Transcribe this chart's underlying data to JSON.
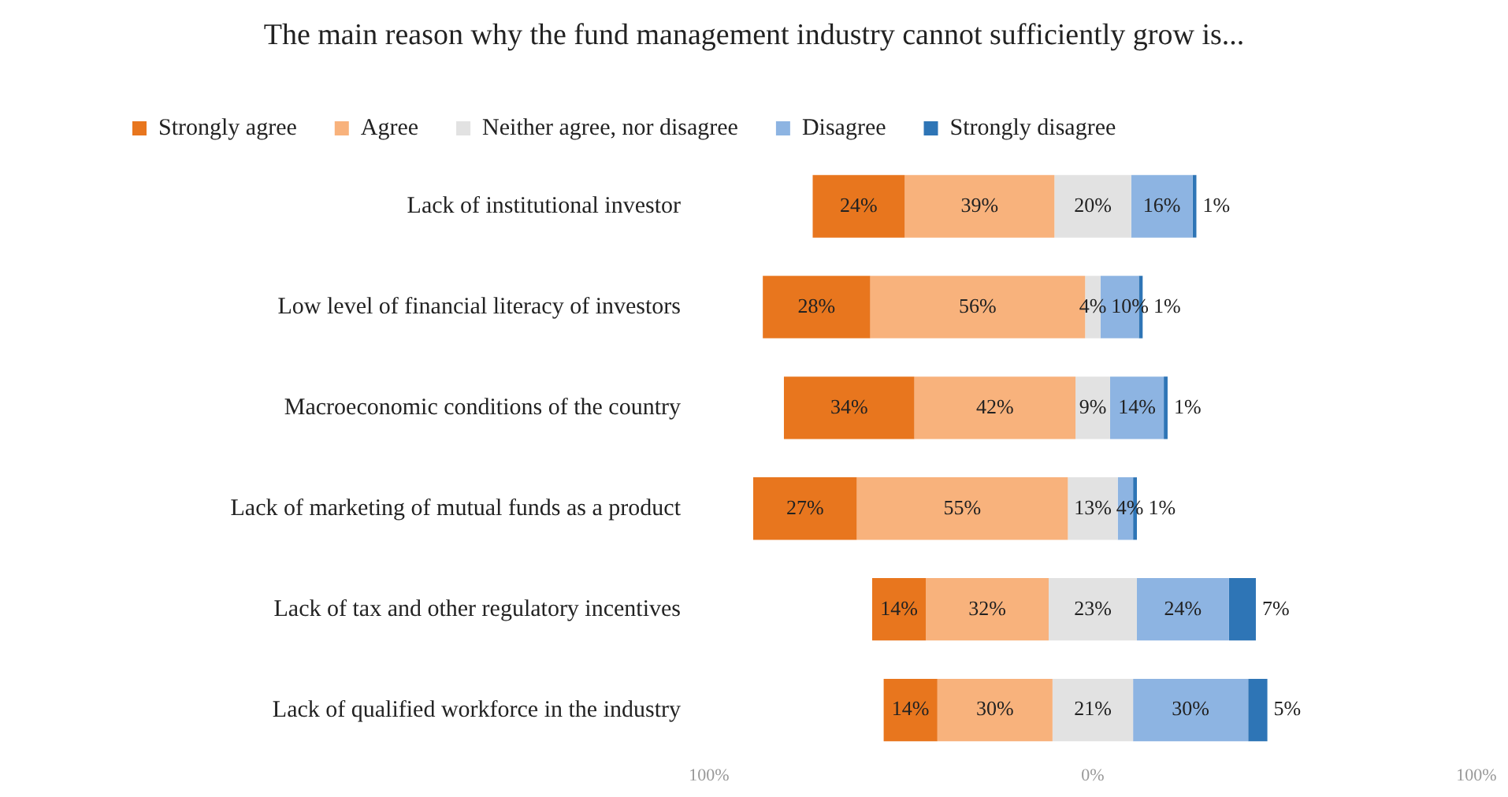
{
  "chart_data": {
    "type": "bar",
    "orientation": "horizontal",
    "title": "The main reason why the fund management industry cannot sufficiently grow is...",
    "categories": [
      "Lack of institutional investor",
      "Low level of financial literacy of investors",
      "Macroeconomic conditions of the country",
      "Lack of marketing of mutual funds as a product",
      "Lack of tax and other regulatory incentives",
      "Lack of qualified workforce in the industry"
    ],
    "series": [
      {
        "name": "Strongly agree",
        "color": "#e8761e",
        "values": [
          24,
          28,
          34,
          27,
          14,
          14
        ],
        "base": [
          -73,
          -86,
          -80.5,
          -88.5,
          -57.5,
          -54.5
        ],
        "value_labels": [
          "24%",
          "28%",
          "34%",
          "27%",
          "14%",
          "14%"
        ]
      },
      {
        "name": "Agree",
        "color": "#f8b27c",
        "values": [
          39,
          56,
          42,
          55,
          32,
          30
        ],
        "base": [
          -49,
          -58,
          -46.5,
          -61.5,
          -43.5,
          -40.5
        ],
        "value_labels": [
          "39%",
          "56%",
          "42%",
          "55%",
          "32%",
          "30%"
        ]
      },
      {
        "name": "Neither agree, nor disagree",
        "color": "#e2e2e2",
        "values": [
          20,
          4,
          9,
          13,
          23,
          21
        ],
        "base": [
          -10,
          -2,
          -4.5,
          -6.5,
          -11.5,
          -10.5
        ],
        "value_labels": [
          "20%",
          "4%",
          "9%",
          "13%",
          "23%",
          "21%"
        ]
      },
      {
        "name": "Disagree",
        "color": "#8db4e2",
        "values": [
          16,
          10,
          14,
          4,
          24,
          30
        ],
        "base": [
          10,
          2,
          4.5,
          6.5,
          11.5,
          10.5
        ],
        "value_labels": [
          "16%",
          "10%",
          "14%",
          "4%",
          "24%",
          "30%"
        ]
      },
      {
        "name": "Strongly disagree",
        "color": "#2e75b6",
        "values": [
          1,
          1,
          1,
          1,
          7,
          5
        ],
        "base": [
          26,
          12,
          18.5,
          10.5,
          35.5,
          40.5
        ],
        "value_labels": [
          "1%",
          "1%",
          "1%",
          "1%",
          "7%",
          "5%"
        ]
      }
    ],
    "xlim": [
      -100,
      100
    ],
    "xticks": [
      {
        "value": -100,
        "label": "100%"
      },
      {
        "value": 0,
        "label": "0%"
      },
      {
        "value": 100,
        "label": "100%"
      }
    ],
    "legend": "top",
    "grid": false
  }
}
